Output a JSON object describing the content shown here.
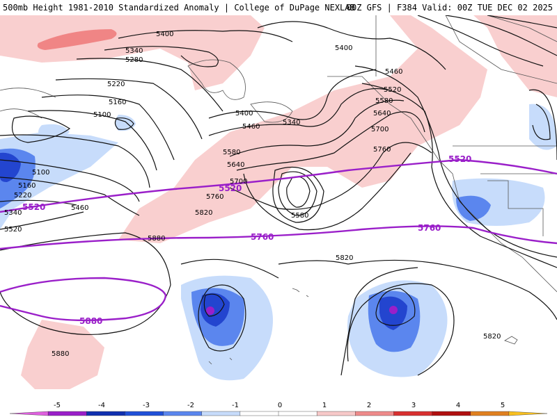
{
  "header": {
    "left_title": "500mb Height 1981-2010 Standardized Anomaly | College of DuPage NEXLAB",
    "right_title": "00Z GFS | F384 Valid: 00Z TUE DEC 02 2025"
  },
  "height_labels": {
    "h5400a": "5400",
    "h5340a": "5340",
    "h5280": "5280",
    "h5220a": "5220",
    "h5160a": "5160",
    "h5100a": "5100",
    "h5100b": "5100",
    "h5160b": "5160",
    "h5220b": "5220",
    "h5340b": "5340",
    "h5520a": "5520",
    "h5460a": "5460",
    "h5400b": "5400",
    "h5460b": "5460",
    "h5340c": "5340",
    "h5580a": "5580",
    "h5640a": "5640",
    "h5700a": "5700",
    "h5760a": "5760",
    "h5820a": "5820",
    "h5880a": "5880",
    "h5580b": "5580",
    "h5400c": "5400",
    "h5460c": "5460",
    "h5520b": "5520",
    "h5580c": "5580",
    "h5640b": "5640",
    "h5700b": "5700",
    "h5760b": "5760",
    "h5820b": "5820",
    "h5820c": "5820",
    "h5880b": "5880"
  },
  "highlight_labels": {
    "p5520a": "5520",
    "p5520b": "5520",
    "p5520c": "5520",
    "p5760a": "5760",
    "p5760b": "5760",
    "p5880": "5880"
  },
  "colorbar": {
    "ticks": [
      "-5",
      "-4",
      "-3",
      "-2",
      "-1",
      "0",
      "1",
      "2",
      "3",
      "4",
      "5"
    ],
    "colors": [
      "#e060e0",
      "#9a1fc9",
      "#1030b0",
      "#2050d8",
      "#5b86ee",
      "#c7dcfb",
      "#ffffff",
      "#ffffff",
      "#f7c9c9",
      "#ee8a8a",
      "#d83030",
      "#b01010",
      "#e08020",
      "#f8c020"
    ]
  },
  "colors": {
    "positive_anomaly": "#f9cfcf",
    "strong_positive": "#f08585",
    "negative_light": "#c7dcfb",
    "negative_mid": "#5b86ee",
    "negative_strong": "#2345cf",
    "negative_extreme": "#9a1fc9",
    "highlight_contour": "#9a1fc9"
  }
}
